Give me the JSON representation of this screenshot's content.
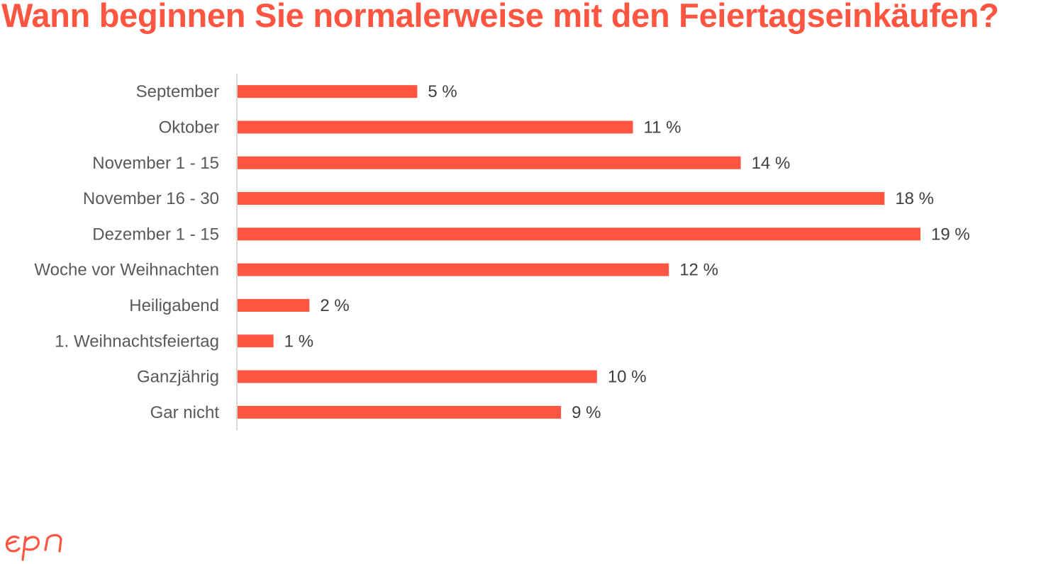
{
  "title": "Wann beginnen Sie normalerweise mit den Feiertagseinkäufen?",
  "logo_icon": "episerver-logo",
  "colors": {
    "accent": "#ff5541",
    "axis": "#d9d9d9",
    "category_text": "#595959",
    "value_text": "#404040"
  },
  "chart_data": {
    "type": "bar",
    "orientation": "horizontal",
    "categories": [
      "September",
      "Oktober",
      "November 1 - 15",
      "November 16 - 30",
      "Dezember 1 - 15",
      "Woche vor Weihnachten",
      "Heiligabend",
      "1. Weihnachtsfeiertag",
      "Ganzjährig",
      "Gar nicht"
    ],
    "values": [
      5,
      11,
      14,
      18,
      19,
      12,
      2,
      1,
      10,
      9
    ],
    "value_labels": [
      "5 %",
      "11 %",
      "14 %",
      "18 %",
      "19 %",
      "12 %",
      "2 %",
      "1 %",
      "10 %",
      "9 %"
    ],
    "unit": "%",
    "xlim": [
      0,
      19
    ],
    "grid": false,
    "legend": "none"
  }
}
